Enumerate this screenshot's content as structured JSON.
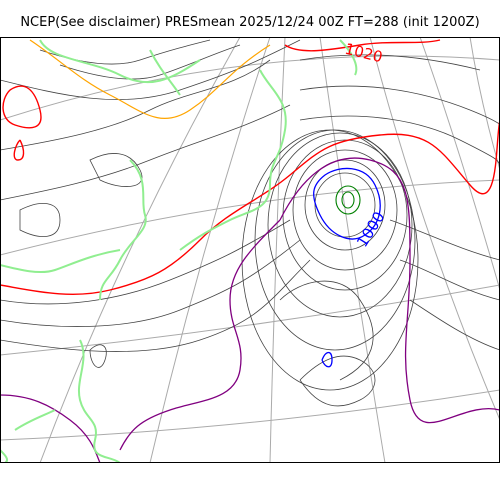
{
  "title": "NCEP(See disclaimer) PRESmean 2025/12/24 00Z FT=288 (init 1200Z)",
  "contour_labels": [
    "1020",
    "1000"
  ],
  "colors": {
    "graticule": "#aaaaaa",
    "coastline": "#90ee90",
    "isobar": "#444444",
    "contour_1020": "#ff0000",
    "contour_1000": "#0000ff",
    "contour_orange": "#ffa500",
    "contour_purple": "#800080",
    "contour_green": "#008000"
  }
}
